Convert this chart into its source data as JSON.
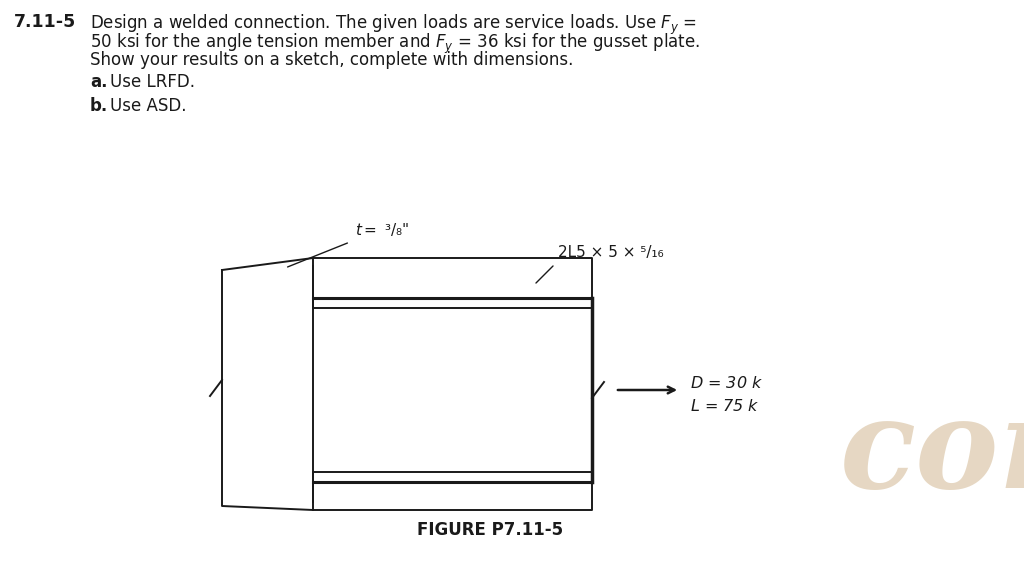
{
  "bg_color": "#ffffff",
  "line_color": "#1a1a1a",
  "text_color": "#1a1a1a",
  "watermark_text": "com",
  "watermark_color": "#c8a87a",
  "watermark_alpha": 0.45,
  "figure_label": "FIGURE P7.11-5",
  "header_num": "7.11-5",
  "header_line1": "Design a welded connection. The given loads are service loads. Use $F_y$ =",
  "header_line2": "50 ksi for the angle tension member and $F_y$ = 36 ksi for the gusset plate.",
  "header_line3": "Show your results on a sketch, complete with dimensions.",
  "part_a_label": "a.",
  "part_a_text": "Use LRFD.",
  "part_b_label": "b.",
  "part_b_text": "Use ASD.",
  "annot_t": "$t = $ ³/₈\"",
  "annot_section": "2L5 × 5 × ⁵/₁₆",
  "annot_D": "$D$ = 30 k",
  "annot_L": "$L$ = 75 k"
}
